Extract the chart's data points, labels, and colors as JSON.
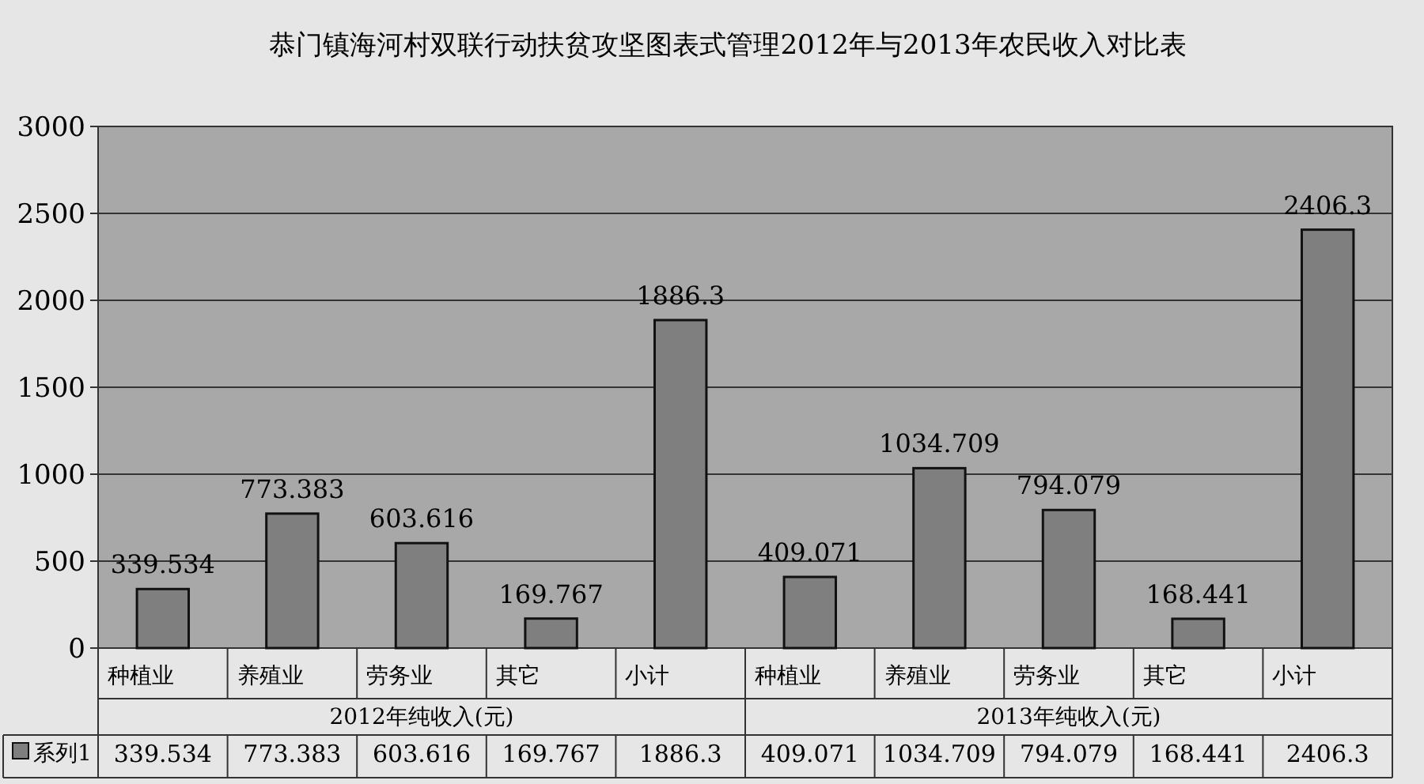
{
  "chart_data": {
    "type": "bar",
    "title": "恭门镇海河村双联行动扶贫攻坚图表式管理2012年与2013年农民收入对比表",
    "categories": [
      "种植业",
      "养殖业",
      "劳务业",
      "其它",
      "小计",
      "种植业",
      "养殖业",
      "劳务业",
      "其它",
      "小计"
    ],
    "series": [
      {
        "name": "系列1",
        "color": "#7f7f7f",
        "values": [
          339.534,
          773.383,
          603.616,
          169.767,
          1886.3,
          409.071,
          1034.709,
          794.079,
          168.441,
          2406.3
        ],
        "value_labels": [
          "339.534",
          "773.383",
          "603.616",
          "169.767",
          "1886.3",
          "409.071",
          "1034.709",
          "794.079",
          "168.441",
          "2406.3"
        ]
      }
    ],
    "annotations": [
      "2012年纯收入(元)",
      "2013年纯收入(元)"
    ],
    "ylim": [
      0,
      3000
    ],
    "yticks": [
      0,
      500,
      1000,
      1500,
      2000,
      2500,
      3000
    ],
    "grid": "y",
    "legend": "bottom"
  }
}
